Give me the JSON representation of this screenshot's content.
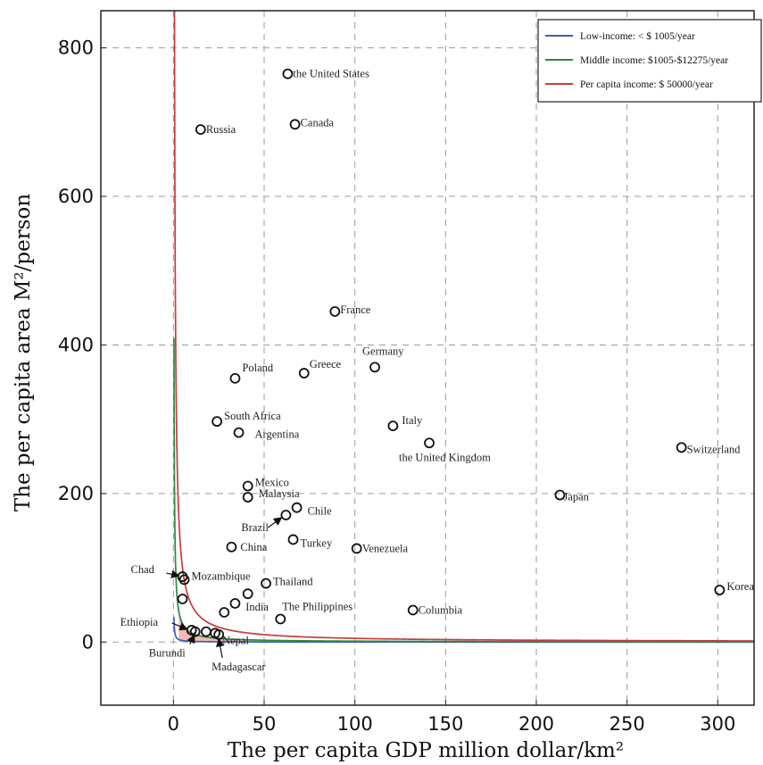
{
  "chart_data": {
    "type": "scatter",
    "xlabel": "The per capita GDP million dollar/km²",
    "ylabel": "The per capita area M²/person",
    "xlim": [
      -40,
      320
    ],
    "ylim": [
      -85,
      850
    ],
    "x_ticks": [
      0,
      50,
      100,
      150,
      200,
      250,
      300
    ],
    "y_ticks": [
      0,
      200,
      400,
      600,
      800
    ],
    "grid": true,
    "legend_position": "top-right",
    "curves": [
      {
        "name": "Low-income: < $ 1005/year",
        "k": 1005,
        "color": "#3b5fb5"
      },
      {
        "name": "Middle income: $1005-$12275/year",
        "k": 12275,
        "color": "#2f8a3f"
      },
      {
        "name": "Per capita income: $ 50000/year",
        "k": 50000,
        "color": "#c83c3c"
      }
    ],
    "fills": {
      "low": "#a8dcb8",
      "middle": "#f8b8b8"
    },
    "points": [
      {
        "label": "the United States",
        "x": 63,
        "y": 765
      },
      {
        "label": "Canada",
        "x": 67,
        "y": 697
      },
      {
        "label": "Russia",
        "x": 15,
        "y": 690
      },
      {
        "label": "France",
        "x": 89,
        "y": 445
      },
      {
        "label": "Germany",
        "x": 111,
        "y": 370
      },
      {
        "label": "Greece",
        "x": 72,
        "y": 362
      },
      {
        "label": "Poland",
        "x": 34,
        "y": 355
      },
      {
        "label": "South Africa",
        "x": 24,
        "y": 297
      },
      {
        "label": "Argentina",
        "x": 36,
        "y": 282
      },
      {
        "label": "Italy",
        "x": 121,
        "y": 291
      },
      {
        "label": "the United Kingdom",
        "x": 141,
        "y": 268
      },
      {
        "label": "Switzerland",
        "x": 280,
        "y": 262
      },
      {
        "label": "Mexico",
        "x": 41,
        "y": 210
      },
      {
        "label": "Malaysia",
        "x": 41,
        "y": 195
      },
      {
        "label": "Japan",
        "x": 213,
        "y": 198
      },
      {
        "label": "Chile",
        "x": 68,
        "y": 181
      },
      {
        "label": "Brazil",
        "x": 62,
        "y": 171
      },
      {
        "label": "Turkey",
        "x": 66,
        "y": 138
      },
      {
        "label": "China",
        "x": 32,
        "y": 128
      },
      {
        "label": "Venezuela",
        "x": 101,
        "y": 126
      },
      {
        "label": "Chad",
        "x": 5,
        "y": 88
      },
      {
        "label": "Mozambique",
        "x": 6,
        "y": 84
      },
      {
        "label": "Thailand",
        "x": 51,
        "y": 79
      },
      {
        "label": "Korea",
        "x": 301,
        "y": 70
      },
      {
        "label": "",
        "x": 41,
        "y": 65
      },
      {
        "label": "",
        "x": 5,
        "y": 58
      },
      {
        "label": "",
        "x": 34,
        "y": 52
      },
      {
        "label": "India",
        "x": 28,
        "y": 40
      },
      {
        "label": "The Philippines",
        "x": 59,
        "y": 31
      },
      {
        "label": "Columbia",
        "x": 132,
        "y": 43
      },
      {
        "label": "Ethiopia",
        "x": 10,
        "y": 16
      },
      {
        "label": "Burundi",
        "x": 12,
        "y": 14
      },
      {
        "label": "",
        "x": 18,
        "y": 14
      },
      {
        "label": "Nepal",
        "x": 23,
        "y": 12
      },
      {
        "label": "Madagascar",
        "x": 25,
        "y": 10
      }
    ]
  }
}
